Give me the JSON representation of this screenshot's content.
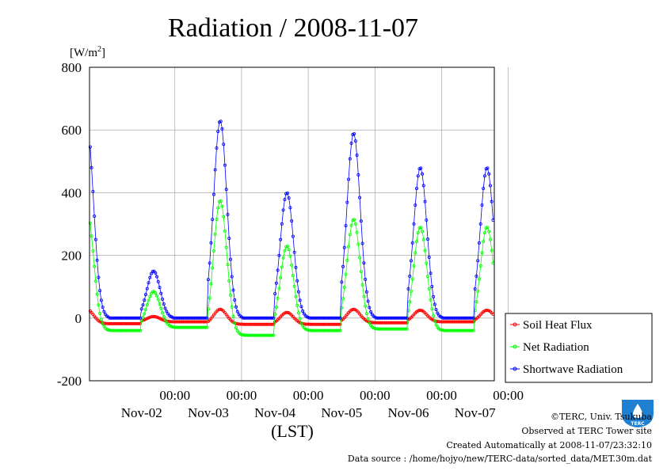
{
  "chart_data": {
    "type": "line",
    "title": "Radiation / 2008-11-07",
    "ylabel": "[W/m",
    "ylabel_sup": "2",
    "ylabel_close": "]",
    "xlabel": "(LST)",
    "ylim": [
      -200,
      800
    ],
    "yticks": [
      -200,
      0,
      200,
      400,
      600,
      800
    ],
    "ytick_labels": [
      "-200",
      "0",
      "200",
      "400",
      "600",
      "800"
    ],
    "x_range_days": [
      0,
      6
    ],
    "x_ticks": [
      {
        "day": 1,
        "time": "00:00",
        "date": "Nov-02"
      },
      {
        "day": 2,
        "time": "00:00",
        "date": "Nov-03"
      },
      {
        "day": 3,
        "time": "00:00",
        "date": "Nov-04"
      },
      {
        "day": 4,
        "time": "00:00",
        "date": "Nov-05"
      },
      {
        "day": 5,
        "time": "00:00",
        "date": "Nov-06"
      },
      {
        "day": 6,
        "time": "00:00",
        "date": "Nov-07"
      }
    ],
    "grid": true,
    "legend_position": "right-bottom",
    "series": [
      {
        "name": "Soil Heat Flux",
        "color": "#ff0000",
        "days": [
          {
            "peak": 28,
            "night": -18
          },
          {
            "peak": 5,
            "night": -12
          },
          {
            "peak": 28,
            "night": -20
          },
          {
            "peak": 18,
            "night": -20
          },
          {
            "peak": 28,
            "night": -15
          },
          {
            "peak": 25,
            "night": -12
          }
        ]
      },
      {
        "name": "Net Radiation",
        "color": "#00ff00",
        "days": [
          {
            "peak": 350,
            "night": -40
          },
          {
            "peak": 85,
            "night": -30
          },
          {
            "peak": 375,
            "night": -55
          },
          {
            "peak": 230,
            "night": -40
          },
          {
            "peak": 315,
            "night": -35
          },
          {
            "peak": 290,
            "night": -40
          }
        ]
      },
      {
        "name": "Shortwave Radiation",
        "color": "#0000ff",
        "days": [
          {
            "peak": 620,
            "night": 0
          },
          {
            "peak": 150,
            "night": 0
          },
          {
            "peak": 630,
            "night": 0
          },
          {
            "peak": 400,
            "night": 0
          },
          {
            "peak": 590,
            "night": 0
          },
          {
            "peak": 480,
            "night": 0
          }
        ]
      }
    ]
  },
  "footer": {
    "line1": "©TERC, Univ. Tsukuba",
    "line2": "Observed at TERC Tower site",
    "line3": "Created Automatically at 2008-11-07/23:32:10",
    "line4": "Data source : /home/hojyo/new/TERC-data/sorted_data/MET.30m.dat"
  },
  "logo": {
    "text": "TERC",
    "color": "#1f7fd0"
  }
}
